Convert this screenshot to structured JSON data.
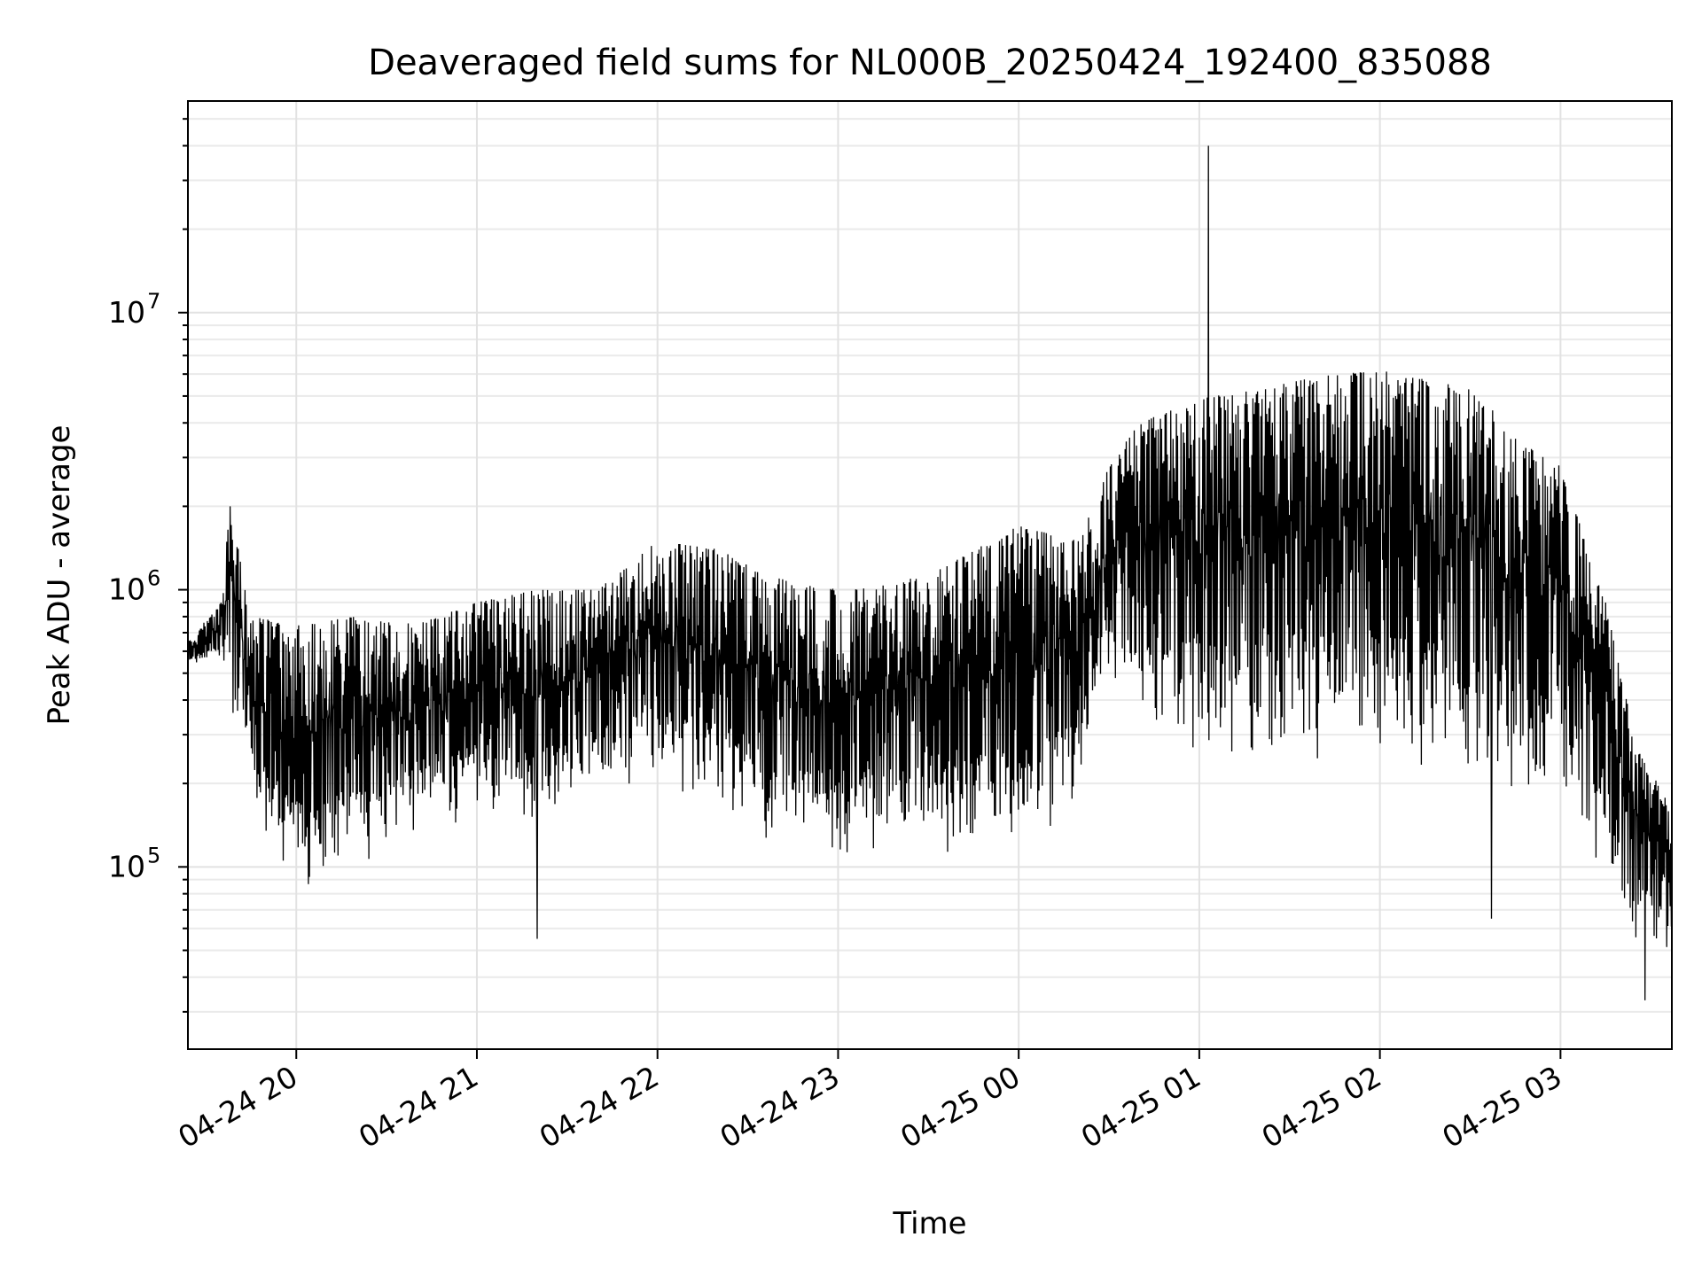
{
  "chart_data": {
    "type": "line",
    "title": "Deaveraged field sums for NL000B_20250424_192400_835088",
    "xlabel": "Time",
    "ylabel": "Peak ADU - average",
    "x_range": [
      "2025-04-24 19:24",
      "2025-04-25 03:37"
    ],
    "x_ticks": [
      {
        "time": "2025-04-24 20:00",
        "label": "04-24 20"
      },
      {
        "time": "2025-04-24 21:00",
        "label": "04-24 21"
      },
      {
        "time": "2025-04-24 22:00",
        "label": "04-24 22"
      },
      {
        "time": "2025-04-24 23:00",
        "label": "04-24 23"
      },
      {
        "time": "2025-04-25 00:00",
        "label": "04-25 00"
      },
      {
        "time": "2025-04-25 01:00",
        "label": "04-25 01"
      },
      {
        "time": "2025-04-25 02:00",
        "label": "04-25 02"
      },
      {
        "time": "2025-04-25 03:00",
        "label": "04-25 03"
      }
    ],
    "y_scale": "log",
    "ylim": [
      22000,
      58000000
    ],
    "y_ticks": [
      {
        "value": 100000,
        "base": "10",
        "exp": "5"
      },
      {
        "value": 1000000,
        "base": "10",
        "exp": "6"
      },
      {
        "value": 10000000,
        "base": "10",
        "exp": "7"
      }
    ],
    "grid": true,
    "line_color": "#000000",
    "series": [
      {
        "envelope": [
          {
            "time": "2025-04-24 19:24",
            "high": 650000,
            "low": 520000
          },
          {
            "time": "2025-04-24 19:35",
            "high": 900000,
            "low": 550000
          },
          {
            "time": "2025-04-24 19:38",
            "high": 2000000,
            "low": 400000
          },
          {
            "time": "2025-04-24 19:45",
            "high": 800000,
            "low": 150000
          },
          {
            "time": "2025-04-24 20:00",
            "high": 750000,
            "low": 80000
          },
          {
            "time": "2025-04-24 20:20",
            "high": 800000,
            "low": 90000
          },
          {
            "time": "2025-04-24 20:40",
            "high": 750000,
            "low": 120000
          },
          {
            "time": "2025-04-24 21:00",
            "high": 900000,
            "low": 150000
          },
          {
            "time": "2025-04-24 21:20",
            "high": 1000000,
            "low": 130000
          },
          {
            "time": "2025-04-24 21:40",
            "high": 1000000,
            "low": 170000
          },
          {
            "time": "2025-04-24 22:00",
            "high": 1500000,
            "low": 200000
          },
          {
            "time": "2025-04-24 22:20",
            "high": 1400000,
            "low": 150000
          },
          {
            "time": "2025-04-24 22:40",
            "high": 1100000,
            "low": 110000
          },
          {
            "time": "2025-04-24 23:00",
            "high": 1000000,
            "low": 100000
          },
          {
            "time": "2025-04-24 23:20",
            "high": 1050000,
            "low": 100000
          },
          {
            "time": "2025-04-24 23:40",
            "high": 1300000,
            "low": 100000
          },
          {
            "time": "2025-04-25 00:00",
            "high": 1700000,
            "low": 110000
          },
          {
            "time": "2025-04-25 00:20",
            "high": 1500000,
            "low": 150000
          },
          {
            "time": "2025-04-25 00:30",
            "high": 2800000,
            "low": 500000
          },
          {
            "time": "2025-04-25 00:40",
            "high": 4000000,
            "low": 280000
          },
          {
            "time": "2025-04-25 01:00",
            "high": 4900000,
            "low": 250000
          },
          {
            "time": "2025-04-25 01:20",
            "high": 5300000,
            "low": 230000
          },
          {
            "time": "2025-04-25 01:40",
            "high": 5900000,
            "low": 230000
          },
          {
            "time": "2025-04-25 02:00",
            "high": 6200000,
            "low": 250000
          },
          {
            "time": "2025-04-25 02:20",
            "high": 5600000,
            "low": 210000
          },
          {
            "time": "2025-04-25 02:35",
            "high": 5200000,
            "low": 170000
          },
          {
            "time": "2025-04-25 02:40",
            "high": 3800000,
            "low": 180000
          },
          {
            "time": "2025-04-25 03:00",
            "high": 2800000,
            "low": 160000
          },
          {
            "time": "2025-04-25 03:15",
            "high": 900000,
            "low": 90000
          },
          {
            "time": "2025-04-25 03:25",
            "high": 280000,
            "low": 45000
          },
          {
            "time": "2025-04-25 03:37",
            "high": 160000,
            "low": 50000
          }
        ],
        "notable_points": [
          {
            "time": "2025-04-24 19:38",
            "value": 2000000
          },
          {
            "time": "2025-04-24 21:20",
            "value": 55000
          },
          {
            "time": "2025-04-25 01:03",
            "value": 40000000
          },
          {
            "time": "2025-04-25 02:37",
            "value": 65000
          },
          {
            "time": "2025-04-25 03:28",
            "value": 33000
          }
        ]
      }
    ]
  }
}
